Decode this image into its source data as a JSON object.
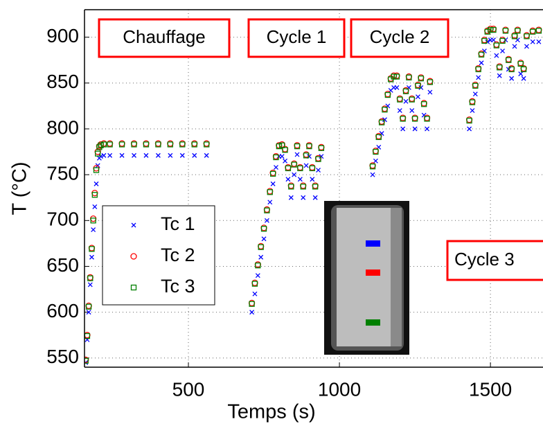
{
  "chart_data": {
    "type": "scatter",
    "xlabel": "Temps (s)",
    "ylabel": "T (°C)",
    "xlim": [
      156,
      1674
    ],
    "ylim": [
      540,
      930
    ],
    "xticks": [
      500,
      1000,
      1500
    ],
    "yticks": [
      550,
      600,
      650,
      700,
      750,
      800,
      850,
      900
    ],
    "grid": true,
    "legend": "left",
    "annotations": [
      "Chauffage",
      "Cycle 1",
      "Cycle 2",
      "Cycle 3"
    ],
    "x": [
      160,
      165,
      170,
      175,
      180,
      185,
      190,
      195,
      200,
      205,
      210,
      220,
      240,
      280,
      320,
      360,
      400,
      440,
      480,
      520,
      560,
      710,
      720,
      730,
      740,
      750,
      760,
      770,
      780,
      790,
      800,
      810,
      820,
      830,
      840,
      850,
      860,
      870,
      880,
      890,
      900,
      910,
      920,
      930,
      940,
      1110,
      1120,
      1130,
      1140,
      1150,
      1160,
      1170,
      1180,
      1190,
      1200,
      1210,
      1220,
      1230,
      1240,
      1250,
      1260,
      1270,
      1280,
      1290,
      1300,
      1430,
      1440,
      1450,
      1460,
      1470,
      1480,
      1490,
      1500,
      1510,
      1520,
      1530,
      1540,
      1550,
      1560,
      1570,
      1580,
      1590,
      1600,
      1610,
      1620,
      1640,
      1660
    ],
    "series": [
      {
        "name": "Tc 1",
        "color": "#0000ff",
        "marker": "x",
        "values": [
          545,
          570,
          600,
          630,
          660,
          690,
          715,
          740,
          760,
          768,
          770,
          771,
          771,
          771,
          771,
          771,
          771,
          771,
          771,
          771,
          771,
          600,
          620,
          640,
          660,
          680,
          700,
          720,
          740,
          758,
          770,
          770,
          765,
          745,
          725,
          750,
          772,
          745,
          725,
          760,
          770,
          745,
          725,
          755,
          770,
          750,
          765,
          780,
          795,
          810,
          825,
          842,
          845,
          845,
          820,
          800,
          830,
          845,
          820,
          800,
          835,
          845,
          815,
          800,
          840,
          800,
          820,
          838,
          856,
          872,
          885,
          895,
          897,
          897,
          880,
          858,
          885,
          897,
          865,
          855,
          890,
          897,
          860,
          855,
          890,
          895,
          895
        ]
      },
      {
        "name": "Tc 2",
        "color": "#ff0000",
        "marker": "circle",
        "values": [
          548,
          575,
          607,
          638,
          670,
          702,
          730,
          757,
          775,
          781,
          783,
          784,
          784,
          784,
          784,
          784,
          784,
          784,
          784,
          784,
          784,
          610,
          632,
          652,
          672,
          692,
          712,
          732,
          752,
          770,
          782,
          783,
          778,
          758,
          738,
          762,
          782,
          758,
          738,
          772,
          782,
          758,
          738,
          768,
          780,
          760,
          776,
          792,
          808,
          822,
          838,
          855,
          858,
          858,
          833,
          812,
          842,
          857,
          833,
          812,
          848,
          856,
          828,
          812,
          852,
          810,
          830,
          848,
          866,
          882,
          897,
          907,
          909,
          909,
          892,
          868,
          897,
          908,
          876,
          866,
          902,
          908,
          872,
          866,
          902,
          907,
          908
        ]
      },
      {
        "name": "Tc 3",
        "color": "#008000",
        "marker": "square",
        "values": [
          547,
          574,
          606,
          637,
          669,
          700,
          728,
          755,
          773,
          780,
          782,
          783,
          783,
          783,
          783,
          783,
          783,
          783,
          783,
          783,
          783,
          609,
          631,
          651,
          671,
          691,
          711,
          731,
          751,
          769,
          781,
          782,
          777,
          757,
          737,
          761,
          781,
          757,
          737,
          771,
          781,
          757,
          737,
          767,
          779,
          759,
          775,
          791,
          807,
          821,
          837,
          854,
          857,
          857,
          832,
          811,
          841,
          856,
          832,
          811,
          847,
          855,
          827,
          811,
          851,
          809,
          829,
          847,
          865,
          881,
          896,
          906,
          908,
          908,
          891,
          867,
          896,
          907,
          875,
          865,
          901,
          907,
          871,
          865,
          901,
          906,
          907
        ]
      }
    ]
  }
}
